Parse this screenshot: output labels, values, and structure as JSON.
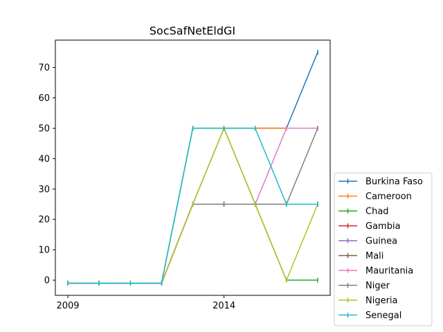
{
  "chart_data": {
    "type": "line",
    "title": "SocSafNetEldGI",
    "xlabel": "",
    "ylabel": "",
    "x": [
      2009,
      2010,
      2011,
      2012,
      2013,
      2014,
      2015,
      2016,
      2017
    ],
    "xlim": [
      2008.6,
      2017.4
    ],
    "ylim": [
      -5,
      79
    ],
    "xticks": [
      2009,
      2014
    ],
    "xtick_labels": [
      "2009",
      "2014"
    ],
    "yticks": [
      0,
      10,
      20,
      30,
      40,
      50,
      60,
      70
    ],
    "ytick_labels": [
      "0",
      "10",
      "20",
      "30",
      "40",
      "50",
      "60",
      "70"
    ],
    "grid": false,
    "legend_position": "lower-right-outside",
    "series": [
      {
        "name": "Burkina Faso",
        "color": "#1f77b4",
        "values": [
          -1,
          -1,
          -1,
          -1,
          50,
          50,
          50,
          50,
          75
        ]
      },
      {
        "name": "Cameroon",
        "color": "#ff7f0e",
        "values": [
          -1,
          -1,
          -1,
          -1,
          50,
          50,
          50,
          50,
          null
        ]
      },
      {
        "name": "Chad",
        "color": "#2ca02c",
        "values": [
          -1,
          -1,
          -1,
          -1,
          25,
          50,
          25,
          0,
          0
        ]
      },
      {
        "name": "Gambia",
        "color": "#d62728",
        "values": [
          -1,
          -1,
          -1,
          -1,
          25,
          25,
          25,
          25,
          25
        ]
      },
      {
        "name": "Guinea",
        "color": "#9467bd",
        "values": [
          -1,
          -1,
          -1,
          -1,
          25,
          25,
          25,
          25,
          25
        ]
      },
      {
        "name": "Mali",
        "color": "#8c564b",
        "values": [
          -1,
          -1,
          -1,
          -1,
          25,
          25,
          25,
          25,
          25
        ]
      },
      {
        "name": "Mauritania",
        "color": "#e377c2",
        "values": [
          -1,
          -1,
          -1,
          -1,
          25,
          25,
          25,
          50,
          50
        ]
      },
      {
        "name": "Niger",
        "color": "#7f7f7f",
        "values": [
          -1,
          -1,
          -1,
          -1,
          25,
          25,
          25,
          25,
          50
        ]
      },
      {
        "name": "Nigeria",
        "color": "#bcbd22",
        "values": [
          -1,
          -1,
          -1,
          -1,
          25,
          50,
          25,
          0,
          25
        ]
      },
      {
        "name": "Senegal",
        "color": "#17becf",
        "values": [
          -1,
          -1,
          -1,
          -1,
          50,
          50,
          50,
          25,
          25
        ]
      }
    ]
  }
}
